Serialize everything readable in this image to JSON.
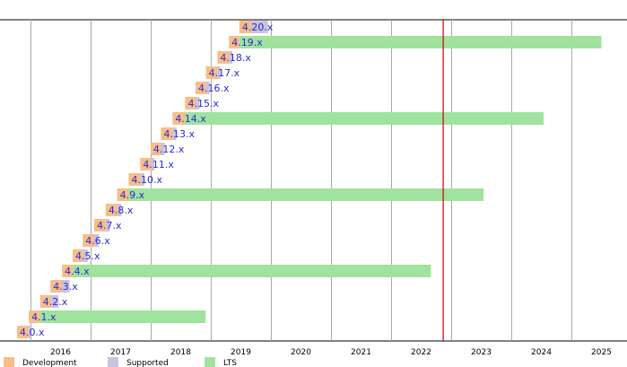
{
  "chart_data": {
    "type": "gantt",
    "title": "",
    "x_axis": {
      "type": "date",
      "range": [
        "2015-05-01",
        "2025-06-01"
      ],
      "ticks": [
        "2016",
        "2017",
        "2018",
        "2019",
        "2020",
        "2021",
        "2022",
        "2023",
        "2024",
        "2025"
      ],
      "grid": true
    },
    "marker_date": "2022-05-15",
    "colors": {
      "development": "#f9bd86",
      "supported": "#c9c3dc",
      "lts": "#a0e39e",
      "marker": "#cc0000",
      "label": "#2a2ad8",
      "grid": "#a8a8a8"
    },
    "legend": {
      "position": "bottom-left",
      "items": [
        {
          "key": "development",
          "label": "Development"
        },
        {
          "key": "supported",
          "label": "Supported"
        },
        {
          "key": "lts",
          "label": "LTS"
        }
      ]
    },
    "releases": [
      {
        "label": "4.0.x",
        "dev_start": "2015-04-12",
        "dev_end": "2015-06-20",
        "support_end": "2015-07-10",
        "lts": false
      },
      {
        "label": "4.1.x",
        "dev_start": "2015-06-22",
        "dev_end": "2015-08-30",
        "support_end": "2018-06-01",
        "lts": true
      },
      {
        "label": "4.2.x",
        "dev_start": "2015-08-30",
        "dev_end": "2015-11-01",
        "support_end": "2015-12-20",
        "lts": false
      },
      {
        "label": "4.3.x",
        "dev_start": "2015-11-01",
        "dev_end": "2016-01-10",
        "support_end": "2016-02-25",
        "lts": false
      },
      {
        "label": "4.4.x",
        "dev_start": "2016-01-10",
        "dev_end": "2016-03-15",
        "support_end": "2022-03-01",
        "lts": true
      },
      {
        "label": "4.5.x",
        "dev_start": "2016-03-15",
        "dev_end": "2016-05-15",
        "support_end": "2016-06-15",
        "lts": false
      },
      {
        "label": "4.6.x",
        "dev_start": "2016-05-15",
        "dev_end": "2016-07-24",
        "support_end": "2016-08-20",
        "lts": false
      },
      {
        "label": "4.7.x",
        "dev_start": "2016-07-24",
        "dev_end": "2016-10-02",
        "support_end": "2016-10-25",
        "lts": false
      },
      {
        "label": "4.8.x",
        "dev_start": "2016-10-02",
        "dev_end": "2016-12-11",
        "support_end": "2017-01-05",
        "lts": false
      },
      {
        "label": "4.9.x",
        "dev_start": "2016-12-11",
        "dev_end": "2017-02-19",
        "support_end": "2023-01-15",
        "lts": true
      },
      {
        "label": "4.10.x",
        "dev_start": "2017-02-19",
        "dev_end": "2017-04-30",
        "support_end": "2017-05-25",
        "lts": false
      },
      {
        "label": "4.11.x",
        "dev_start": "2017-04-30",
        "dev_end": "2017-07-02",
        "support_end": "2017-07-25",
        "lts": false
      },
      {
        "label": "4.12.x",
        "dev_start": "2017-07-02",
        "dev_end": "2017-09-03",
        "support_end": "2017-09-25",
        "lts": false
      },
      {
        "label": "4.13.x",
        "dev_start": "2017-09-03",
        "dev_end": "2017-11-12",
        "support_end": "2017-12-05",
        "lts": false
      },
      {
        "label": "4.14.x",
        "dev_start": "2017-11-12",
        "dev_end": "2018-01-28",
        "support_end": "2024-01-15",
        "lts": true
      },
      {
        "label": "4.15.x",
        "dev_start": "2018-01-28",
        "dev_end": "2018-04-01",
        "support_end": "2018-04-25",
        "lts": false
      },
      {
        "label": "4.16.x",
        "dev_start": "2018-04-01",
        "dev_end": "2018-06-03",
        "support_end": "2018-06-25",
        "lts": false
      },
      {
        "label": "4.17.x",
        "dev_start": "2018-06-03",
        "dev_end": "2018-08-12",
        "support_end": "2018-08-30",
        "lts": false
      },
      {
        "label": "4.18.x",
        "dev_start": "2018-08-12",
        "dev_end": "2018-10-21",
        "support_end": "2018-11-10",
        "lts": false
      },
      {
        "label": "4.19.x",
        "dev_start": "2018-10-21",
        "dev_end": "2018-12-23",
        "support_end": "2025-01-01",
        "lts": true
      },
      {
        "label": "4.20.x",
        "dev_start": "2018-12-23",
        "dev_end": "2019-03-03",
        "support_end": "2019-06-15",
        "lts": false
      }
    ]
  }
}
